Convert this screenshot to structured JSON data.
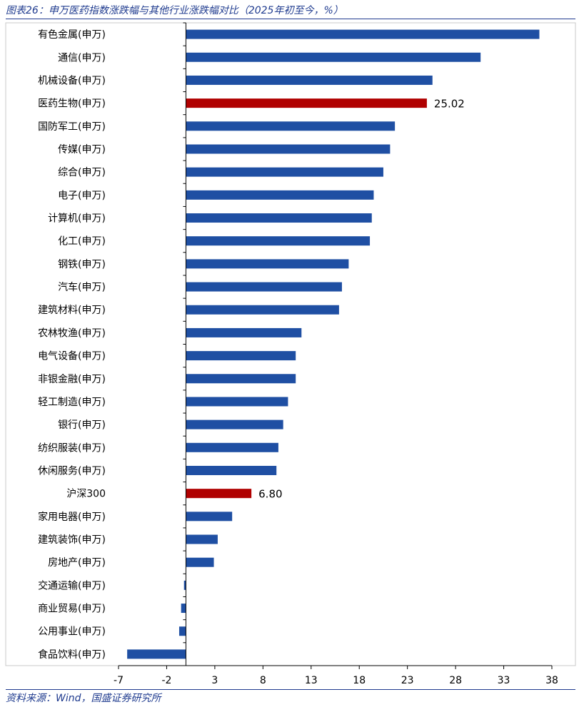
{
  "header": {
    "title": "图表26：申万医药指数涨跌幅与其他行业涨跌幅对比（2025年初至今，%）"
  },
  "footer": {
    "source": "资料来源：Wind，国盛证券研究所"
  },
  "colors": {
    "bar": "#1f4fa3",
    "highlight": "#b00000",
    "title": "#1f3b8f"
  },
  "chart_data": {
    "type": "bar",
    "orientation": "horizontal",
    "title": "图表26：申万医药指数涨跌幅与其他行业涨跌幅对比（2025年初至今，%）",
    "xlabel": "",
    "ylabel": "",
    "xlim": [
      -7,
      38
    ],
    "xticks": [
      -7,
      -2,
      3,
      8,
      13,
      18,
      23,
      28,
      33,
      38
    ],
    "grid": false,
    "legend": "none",
    "categories": [
      "有色金属(申万)",
      "通信(申万)",
      "机械设备(申万)",
      "医药生物(申万)",
      "国防军工(申万)",
      "传媒(申万)",
      "综合(申万)",
      "电子(申万)",
      "计算机(申万)",
      "化工(申万)",
      "钢铁(申万)",
      "汽车(申万)",
      "建筑材料(申万)",
      "农林牧渔(申万)",
      "电气设备(申万)",
      "非银金融(申万)",
      "轻工制造(申万)",
      "银行(申万)",
      "纺织服装(申万)",
      "休闲服务(申万)",
      "沪深300",
      "家用电器(申万)",
      "建筑装饰(申万)",
      "房地产(申万)",
      "交通运输(申万)",
      "商业贸易(申万)",
      "公用事业(申万)",
      "食品饮料(申万)"
    ],
    "values": [
      36.7,
      30.6,
      25.6,
      25.02,
      21.7,
      21.2,
      20.5,
      19.5,
      19.3,
      19.1,
      16.9,
      16.2,
      15.9,
      12.0,
      11.4,
      11.4,
      10.6,
      10.1,
      9.6,
      9.4,
      6.8,
      4.8,
      3.3,
      2.9,
      -0.2,
      -0.5,
      -0.7,
      -6.1
    ],
    "highlight": [
      "医药生物(申万)",
      "沪深300"
    ],
    "data_labels": [
      {
        "category": "医药生物(申万)",
        "text": "25.02"
      },
      {
        "category": "沪深300",
        "text": "6.80"
      }
    ]
  }
}
